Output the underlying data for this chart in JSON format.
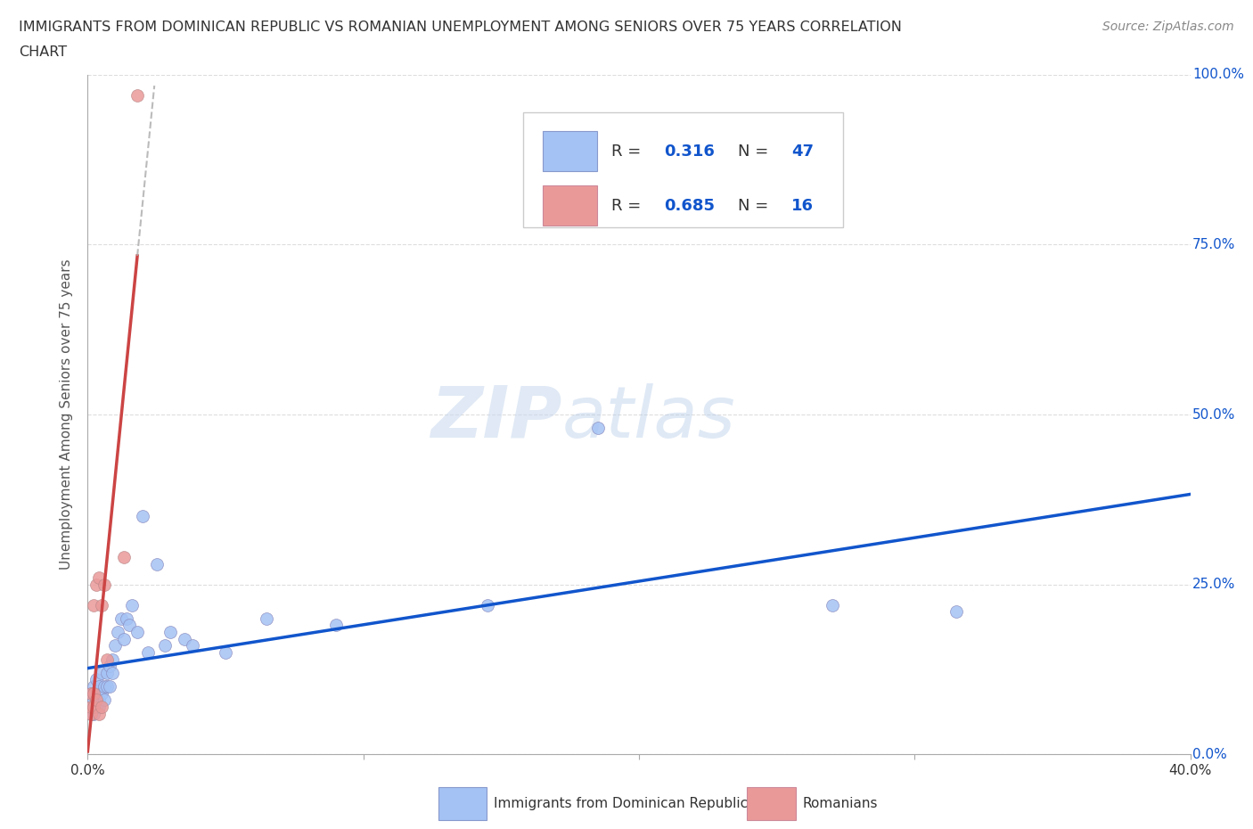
{
  "title_line1": "IMMIGRANTS FROM DOMINICAN REPUBLIC VS ROMANIAN UNEMPLOYMENT AMONG SENIORS OVER 75 YEARS CORRELATION",
  "title_line2": "CHART",
  "source": "Source: ZipAtlas.com",
  "ylabel": "Unemployment Among Seniors over 75 years",
  "blue_color": "#a4c2f4",
  "pink_color": "#ea9999",
  "blue_line_color": "#1155cc",
  "pink_line_color": "#cc4444",
  "label1": "Immigrants from Dominican Republic",
  "label2": "Romanians",
  "blue_x": [
    0.001,
    0.001,
    0.001,
    0.002,
    0.002,
    0.002,
    0.002,
    0.002,
    0.003,
    0.003,
    0.003,
    0.003,
    0.004,
    0.004,
    0.004,
    0.005,
    0.005,
    0.006,
    0.006,
    0.007,
    0.007,
    0.008,
    0.008,
    0.009,
    0.009,
    0.01,
    0.011,
    0.012,
    0.013,
    0.014,
    0.015,
    0.016,
    0.018,
    0.02,
    0.022,
    0.025,
    0.028,
    0.03,
    0.035,
    0.038,
    0.05,
    0.065,
    0.09,
    0.145,
    0.185,
    0.27,
    0.315
  ],
  "blue_y": [
    0.07,
    0.09,
    0.06,
    0.08,
    0.07,
    0.1,
    0.06,
    0.09,
    0.08,
    0.07,
    0.09,
    0.11,
    0.08,
    0.1,
    0.07,
    0.09,
    0.12,
    0.1,
    0.08,
    0.12,
    0.1,
    0.13,
    0.1,
    0.14,
    0.12,
    0.16,
    0.18,
    0.2,
    0.17,
    0.2,
    0.19,
    0.22,
    0.18,
    0.35,
    0.15,
    0.28,
    0.16,
    0.18,
    0.17,
    0.16,
    0.15,
    0.2,
    0.19,
    0.22,
    0.48,
    0.22,
    0.21
  ],
  "pink_x": [
    0.001,
    0.001,
    0.001,
    0.002,
    0.002,
    0.002,
    0.003,
    0.003,
    0.004,
    0.004,
    0.005,
    0.005,
    0.006,
    0.007,
    0.013,
    0.018
  ],
  "pink_y": [
    0.06,
    0.09,
    0.07,
    0.22,
    0.09,
    0.07,
    0.25,
    0.08,
    0.26,
    0.06,
    0.07,
    0.22,
    0.25,
    0.14,
    0.29,
    0.97
  ],
  "xlim": [
    0.0,
    0.4
  ],
  "ylim": [
    0.0,
    1.0
  ],
  "yticks": [
    0.0,
    0.25,
    0.5,
    0.75,
    1.0
  ],
  "ytick_labels_right": [
    "0.0%",
    "25.0%",
    "50.0%",
    "75.0%",
    "100.0%"
  ],
  "xtick_left_label": "0.0%",
  "xtick_right_label": "40.0%",
  "watermark_zip": "ZIP",
  "watermark_atlas": "atlas",
  "background_color": "#ffffff",
  "grid_color": "#dddddd",
  "pink_trendline_xstart": 0.0,
  "pink_trendline_xend_solid": 0.018,
  "pink_trendline_xend_dash": 0.1
}
